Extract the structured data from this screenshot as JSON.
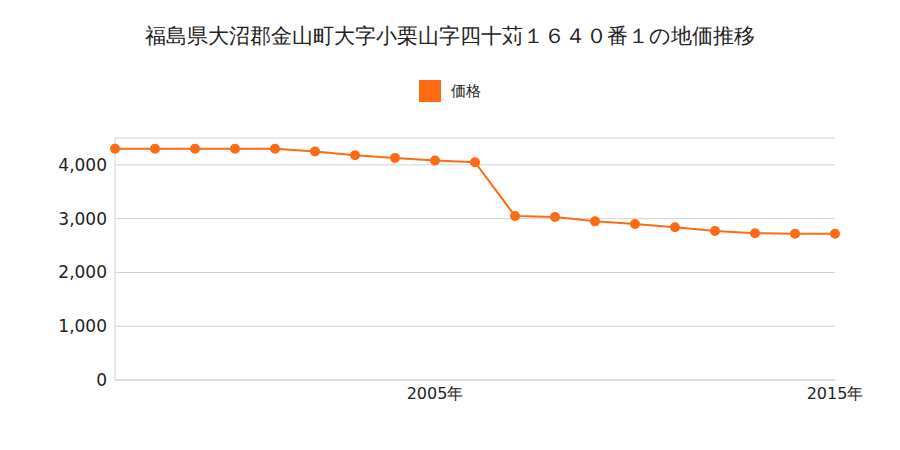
{
  "chart_data": {
    "type": "line",
    "title": "福島県大沼郡金山町大字小栗山字四十苅１６４０番１の地価推移",
    "categories": [
      null,
      null,
      null,
      null,
      null,
      null,
      null,
      null,
      "2005年",
      null,
      null,
      null,
      null,
      null,
      null,
      null,
      null,
      null,
      "2015年"
    ],
    "series": [
      {
        "name": "価格",
        "color": "#ff6a13",
        "marker": "circle",
        "values": [
          4300,
          4300,
          4300,
          4300,
          4300,
          4250,
          4180,
          4130,
          4080,
          4050,
          3050,
          3030,
          2950,
          2900,
          2840,
          2770,
          2730,
          2720,
          2720
        ]
      }
    ],
    "ylim": [
      0,
      4500
    ],
    "yticks": [
      0,
      {
        "value": 1000,
        "label": "1,000"
      },
      {
        "value": 2000,
        "label": "2,000"
      },
      {
        "value": 3000,
        "label": "3,000"
      },
      {
        "value": 4000,
        "label": "4,000"
      }
    ],
    "grid": true,
    "legend": "top"
  }
}
